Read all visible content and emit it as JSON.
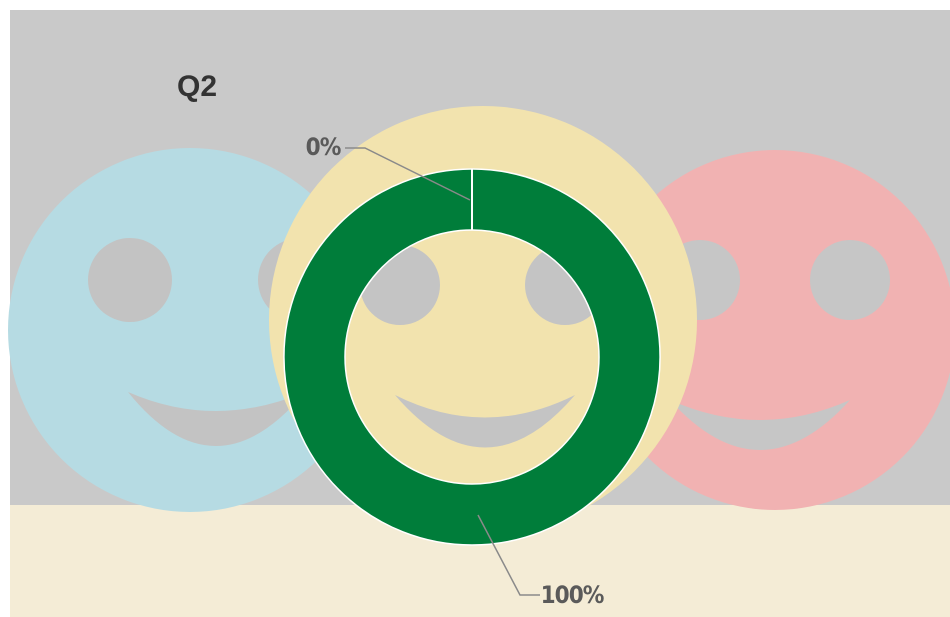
{
  "chart_data": {
    "type": "donut",
    "title": "Q2",
    "values": [
      0,
      100
    ],
    "value_labels": [
      "0%",
      "100%"
    ],
    "colors": [
      "#ffffff",
      "#007d3a"
    ]
  }
}
